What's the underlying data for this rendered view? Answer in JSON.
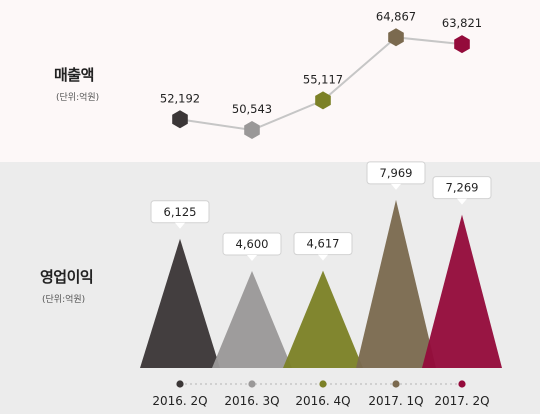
{
  "revenue": {
    "title": "매출액",
    "unit": "(단위:억원)"
  },
  "operating_profit": {
    "title": "영업이익",
    "unit": "(단위:억원)"
  },
  "colors": {
    "2016. 2Q": "#3b3637",
    "2016. 3Q": "#9a9898",
    "2016. 4Q": "#7c8127",
    "2017. 1Q": "#7b6a4f",
    "2017. 2Q": "#940b3b",
    "line": "#c6c6c6"
  },
  "chart_data": [
    {
      "type": "line",
      "title": "매출액",
      "unit": "(단위:억원)",
      "categories": [
        "2016. 2Q",
        "2016. 3Q",
        "2016. 4Q",
        "2017. 1Q",
        "2017. 2Q"
      ],
      "values": [
        52192,
        50543,
        55117,
        64867,
        63821
      ],
      "labels": [
        "52,192",
        "50,543",
        "55,117",
        "64,867",
        "63,821"
      ],
      "ylim": [
        49000,
        66000
      ],
      "marker": "hexagon",
      "grid": false
    },
    {
      "type": "area",
      "shape": "triangle",
      "title": "영업이익",
      "unit": "(단위:억원)",
      "categories": [
        "2016. 2Q",
        "2016. 3Q",
        "2016. 4Q",
        "2017. 1Q",
        "2017. 2Q"
      ],
      "values": [
        6125,
        4600,
        4617,
        7969,
        7269
      ],
      "labels": [
        "6,125",
        "4,600",
        "4,617",
        "7,969",
        "7,269"
      ],
      "ylim": [
        0,
        8200
      ],
      "grid": false
    }
  ]
}
